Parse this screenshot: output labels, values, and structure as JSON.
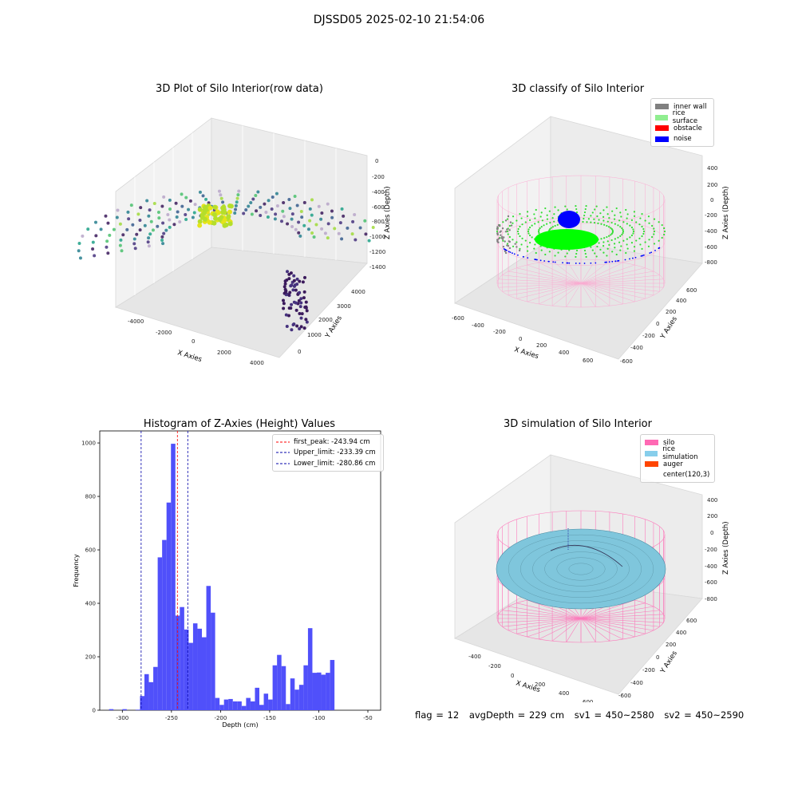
{
  "suptitle": "DJSSD05 2025-02-10 21:54:06",
  "status": {
    "flag": "flag = 12",
    "avg": "avgDepth = 229 cm",
    "sv1": "sv1 = 450~2580",
    "sv2": "sv2 = 450~2590"
  },
  "chart_data": [
    {
      "type": "scatter",
      "title": "3D Plot of Silo Interior(row data)",
      "xlabel": "X Axies",
      "ylabel": "Y Axies",
      "zlabel": "Z Axies (Depth)",
      "x_ticks": [
        "-4000",
        "-2000",
        "0",
        "2000",
        "4000"
      ],
      "y_ticks": [
        "0",
        "1000",
        "2000",
        "3000",
        "4000"
      ],
      "z_ticks": [
        "0",
        "-200",
        "-400",
        "-600",
        "-800",
        "-1000",
        "-1200",
        "-1400"
      ],
      "colormap": "viridis"
    },
    {
      "type": "scatter",
      "title": "3D classify of Silo Interior",
      "xlabel": "X Axies",
      "ylabel": "Y Axies",
      "zlabel": "Z Axies (Depth)",
      "x_ticks": [
        "-600",
        "-400",
        "-200",
        "0",
        "200",
        "400",
        "600"
      ],
      "y_ticks": [
        "-600",
        "-400",
        "-200",
        "0",
        "200",
        "400",
        "600"
      ],
      "z_ticks": [
        "400",
        "200",
        "0",
        "-200",
        "-400",
        "-600",
        "-800"
      ],
      "legend_position": "top-right",
      "legend": [
        {
          "label": "inner wall",
          "color": "#808080"
        },
        {
          "label": "rice surface",
          "color": "#90ee90"
        },
        {
          "label": "obstacle",
          "color": "#ff0000"
        },
        {
          "label": "noise",
          "color": "#0000ff"
        }
      ]
    },
    {
      "type": "bar",
      "title": "Histogram of Z-Axies (Height) Values",
      "xlabel": "Depth (cm)",
      "ylabel": "Frequency",
      "xlim": [
        -323,
        -37
      ],
      "ylim": [
        0,
        1045
      ],
      "x_ticks": [
        "-300",
        "-250",
        "-200",
        "-150",
        "-100",
        "-50"
      ],
      "x_tick_values": [
        -300,
        -250,
        -200,
        -150,
        -100,
        -50
      ],
      "y_ticks": [
        "0",
        "200",
        "400",
        "600",
        "800",
        "1000"
      ],
      "y_tick_values": [
        0,
        200,
        400,
        600,
        800,
        1000
      ],
      "bar_color": "#5050fa",
      "bin_start": -313.5,
      "bin_width": 4.5,
      "values": [
        4,
        0,
        0,
        4,
        0,
        0,
        2,
        53,
        135,
        105,
        162,
        572,
        637,
        777,
        997,
        354,
        386,
        302,
        252,
        325,
        305,
        273,
        465,
        365,
        46,
        20,
        40,
        42,
        33,
        33,
        16,
        46,
        33,
        84,
        20,
        62,
        40,
        168,
        207,
        165,
        23,
        119,
        77,
        95,
        168,
        307,
        140,
        141,
        133,
        140,
        188
      ],
      "lines": [
        {
          "label": "first_peak: -243.94 cm",
          "value": -243.94,
          "color": "#ff0000"
        },
        {
          "label": "Upper_limit: -233.39 cm",
          "value": -233.39,
          "color": "#0000aa"
        },
        {
          "label": "Lower_limit: -280.86 cm",
          "value": -280.86,
          "color": "#0000aa"
        }
      ],
      "legend_position": "top-right"
    },
    {
      "type": "surface",
      "title": "3D simulation of Silo Interior",
      "xlabel": "X Axies",
      "ylabel": "Y Axies",
      "zlabel": "Z Axies (Depth)",
      "x_ticks": [
        "-400",
        "-200",
        "0",
        "200",
        "400",
        "600"
      ],
      "y_ticks": [
        "-600",
        "-400",
        "-200",
        "0",
        "200",
        "400",
        "600"
      ],
      "z_ticks": [
        "400",
        "200",
        "0",
        "-200",
        "-400",
        "-600",
        "-800"
      ],
      "legend_position": "top-right",
      "legend": [
        {
          "label": "silo",
          "color": "#ff69b4"
        },
        {
          "label": "rice simulation",
          "color": "#87ceeb"
        },
        {
          "label": "auger",
          "color": "#ff4500"
        },
        {
          "label": "center(120,3)",
          "color": "#ffffff"
        }
      ]
    }
  ]
}
